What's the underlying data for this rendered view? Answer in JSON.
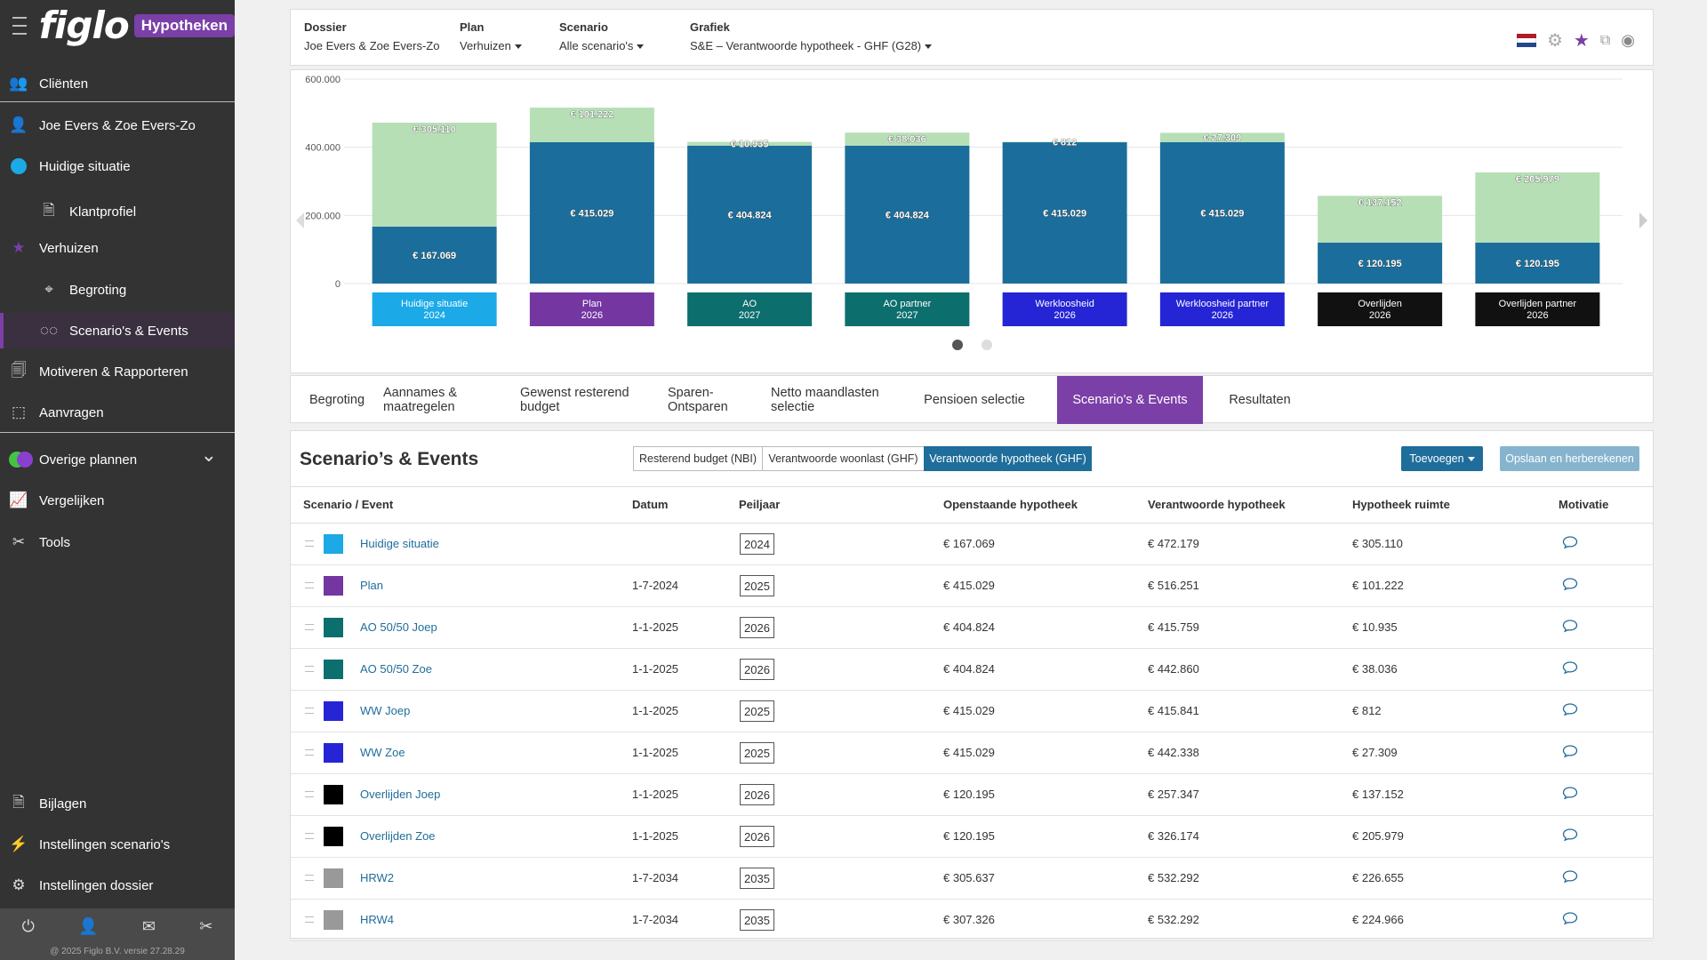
{
  "sidebar": {
    "logo": "figlo",
    "badge": "Hypotheken",
    "items": [
      {
        "label": "Cliënten",
        "icon": "users-icon",
        "glyph": "👥"
      },
      {
        "label": "Joe Evers & Zoe Evers-Zo",
        "icon": "user-icon",
        "glyph": "👤"
      },
      {
        "label": "Huidige situatie",
        "icon": "blue-dot-icon"
      },
      {
        "label": "Klantprofiel",
        "icon": "document-icon",
        "glyph": "🗎"
      },
      {
        "label": "Verhuizen",
        "icon": "star-icon",
        "glyph": "★"
      },
      {
        "label": "Begroting",
        "icon": "target-icon",
        "glyph": "⌖"
      },
      {
        "label": "Scenario's & Events",
        "icon": "glasses-icon",
        "glyph": "◌◌"
      },
      {
        "label": "Motiveren & Rapporteren",
        "icon": "report-icon",
        "glyph": "🗐"
      },
      {
        "label": "Aanvragen",
        "icon": "send-icon",
        "glyph": "⬚"
      },
      {
        "label": "Overige plannen",
        "icon": "plans-icon"
      },
      {
        "label": "Vergelijken",
        "icon": "chart-line-icon",
        "glyph": "📈"
      },
      {
        "label": "Tools",
        "icon": "tools-icon",
        "glyph": "✂"
      },
      {
        "label": "Bijlagen",
        "icon": "attachment-icon",
        "glyph": "🗎"
      },
      {
        "label": "Instellingen scenario's",
        "icon": "lightning-icon",
        "glyph": "⚡"
      },
      {
        "label": "Instellingen dossier",
        "icon": "gear-icon",
        "glyph": "⚙"
      }
    ],
    "copyright": "@ 2025 Figlo B.V. versie 27.28.29"
  },
  "header": {
    "dossier_label": "Dossier",
    "dossier_value": "Joe Evers & Zoe Evers-Zo",
    "plan_label": "Plan",
    "plan_value": "Verhuizen",
    "scenario_label": "Scenario",
    "scenario_value": "Alle scenario's",
    "grafiek_label": "Grafiek",
    "grafiek_value": "S&E – Verantwoorde hypotheek - GHF (G28)"
  },
  "chart_data": {
    "type": "bar",
    "stacked": true,
    "ylim": [
      0,
      600000
    ],
    "yticks": [
      "0",
      "200.000",
      "400.000",
      "600.000"
    ],
    "categories": [
      "Huidige situatie 2024",
      "Plan 2026",
      "AO 2027",
      "AO partner 2027",
      "Werkloosheid 2026",
      "Werkloosheid partner 2026",
      "Overlijden 2026",
      "Overlijden partner 2026"
    ],
    "category_lines": [
      [
        "Huidige situatie",
        "2024"
      ],
      [
        "Plan",
        "2026"
      ],
      [
        "AO",
        "2027"
      ],
      [
        "AO partner",
        "2027"
      ],
      [
        "Werkloosheid",
        "2026"
      ],
      [
        "Werkloosheid partner",
        "2026"
      ],
      [
        "Overlijden",
        "2026"
      ],
      [
        "Overlijden partner",
        "2026"
      ]
    ],
    "category_colors": [
      "#1ba9e8",
      "#7436a1",
      "#0d6e6e",
      "#0d6e6e",
      "#2525d6",
      "#2525d6",
      "#111111",
      "#111111"
    ],
    "series": [
      {
        "values": [
          167069,
          415029,
          404824,
          404824,
          415029,
          415029,
          120195,
          120195
        ],
        "labels": [
          "€ 167.069",
          "€ 415.029",
          "€ 404.824",
          "€ 404.824",
          "€ 415.029",
          "€ 415.029",
          "€ 120.195",
          "€ 120.195"
        ],
        "color": "#1b6e9b"
      },
      {
        "values": [
          305110,
          101222,
          10935,
          38036,
          812,
          27309,
          137152,
          205979
        ],
        "labels": [
          "€ 305.110",
          "€ 101.222",
          "€ 10.935",
          "€ 38.036",
          "€ 812",
          "€ 27.309",
          "€ 137.152",
          "€ 205.979"
        ],
        "color": "#b6dfb6"
      }
    ],
    "grid": true
  },
  "tabs": [
    "Begroting",
    "Aannames & maatregelen",
    "Gewenst resterend budget",
    "Sparen-Ontsparen",
    "Netto maandlasten selectie",
    "Pensioen selectie",
    "Scenario's & Events",
    "Resultaten"
  ],
  "active_tab": 6,
  "panel": {
    "title": "Scenario’s & Events",
    "toggles": [
      "Resterend budget (NBI)",
      "Verantwoorde woonlast (GHF)",
      "Verantwoorde hypotheek (GHF)"
    ],
    "active_toggle": 2,
    "add_button": "Toevoegen",
    "save_button": "Opslaan en herberekenen"
  },
  "table": {
    "headers": [
      "Scenario / Event",
      "Datum",
      "Peiljaar",
      "Openstaande hypotheek",
      "Verantwoorde hypotheek",
      "Hypotheek ruimte",
      "Motivatie"
    ],
    "rows": [
      {
        "color": "#1ba9e8",
        "name": "Huidige situatie",
        "datum": "",
        "peiljaar": "2024",
        "open": "€ 167.069",
        "verantw": "€ 472.179",
        "ruimte": "€ 305.110"
      },
      {
        "color": "#7436a1",
        "name": "Plan",
        "datum": "1-7-2024",
        "peiljaar": "2025",
        "open": "€ 415.029",
        "verantw": "€ 516.251",
        "ruimte": "€ 101.222"
      },
      {
        "color": "#0d6e6e",
        "name": "AO 50/50 Joep",
        "datum": "1-1-2025",
        "peiljaar": "2026",
        "open": "€ 404.824",
        "verantw": "€ 415.759",
        "ruimte": "€ 10.935"
      },
      {
        "color": "#0d6e6e",
        "name": "AO 50/50 Zoe",
        "datum": "1-1-2025",
        "peiljaar": "2026",
        "open": "€ 404.824",
        "verantw": "€ 442.860",
        "ruimte": "€ 38.036"
      },
      {
        "color": "#2525d6",
        "name": "WW Joep",
        "datum": "1-1-2025",
        "peiljaar": "2025",
        "open": "€ 415.029",
        "verantw": "€ 415.841",
        "ruimte": "€ 812"
      },
      {
        "color": "#2525d6",
        "name": "WW Zoe",
        "datum": "1-1-2025",
        "peiljaar": "2025",
        "open": "€ 415.029",
        "verantw": "€ 442.338",
        "ruimte": "€ 27.309"
      },
      {
        "color": "#000000",
        "name": "Overlijden Joep",
        "datum": "1-1-2025",
        "peiljaar": "2026",
        "open": "€ 120.195",
        "verantw": "€ 257.347",
        "ruimte": "€ 137.152"
      },
      {
        "color": "#000000",
        "name": "Overlijden Zoe",
        "datum": "1-1-2025",
        "peiljaar": "2026",
        "open": "€ 120.195",
        "verantw": "€ 326.174",
        "ruimte": "€ 205.979"
      },
      {
        "color": "#999999",
        "name": "HRW2",
        "datum": "1-7-2034",
        "peiljaar": "2035",
        "open": "€ 305.637",
        "verantw": "€ 532.292",
        "ruimte": "€ 226.655"
      },
      {
        "color": "#999999",
        "name": "HRW4",
        "datum": "1-7-2034",
        "peiljaar": "2035",
        "open": "€ 307.326",
        "verantw": "€ 532.292",
        "ruimte": "€ 224.966"
      }
    ]
  },
  "colors": {
    "accent": "#7b3fa8",
    "primary": "#1f6d9a",
    "sidebar": "#333333"
  }
}
